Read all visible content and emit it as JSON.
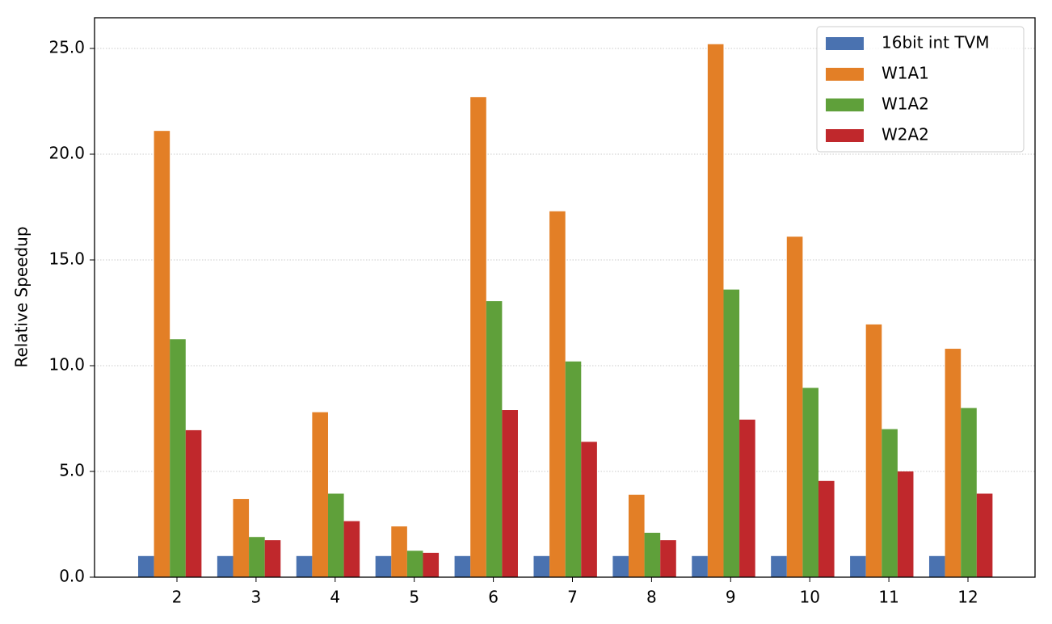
{
  "chart_data": {
    "type": "bar",
    "y_label": "Relative Speedup",
    "categories": [
      "2",
      "3",
      "4",
      "5",
      "6",
      "7",
      "8",
      "9",
      "10",
      "11",
      "12"
    ],
    "series": [
      {
        "name": "16bit int TVM",
        "color": "#4a72b0",
        "values": [
          1,
          1,
          1,
          1,
          1,
          1,
          1,
          1,
          1,
          1,
          1
        ]
      },
      {
        "name": "W1A1",
        "color": "#e37f26",
        "values": [
          21.1,
          3.7,
          7.8,
          2.4,
          22.7,
          17.3,
          3.9,
          25.2,
          16.1,
          11.95,
          10.8
        ]
      },
      {
        "name": "W1A2",
        "color": "#5fa03a",
        "values": [
          11.25,
          1.9,
          3.95,
          1.25,
          13.05,
          10.2,
          2.1,
          13.6,
          8.95,
          7.0,
          8.0
        ]
      },
      {
        "name": "W2A2",
        "color": "#c0282c",
        "values": [
          6.95,
          1.75,
          2.65,
          1.15,
          7.9,
          6.4,
          1.75,
          7.45,
          4.55,
          5.0,
          3.95
        ]
      }
    ],
    "ylim": [
      0,
      26.45
    ],
    "yticks": [
      {
        "value": 0,
        "label": "0.0"
      },
      {
        "value": 5,
        "label": "5.0"
      },
      {
        "value": 10,
        "label": "10.0"
      },
      {
        "value": 15,
        "label": "15.0"
      },
      {
        "value": 20,
        "label": "20.0"
      },
      {
        "value": 25,
        "label": "25.0"
      }
    ],
    "grid": true,
    "legend": "upper-right"
  }
}
